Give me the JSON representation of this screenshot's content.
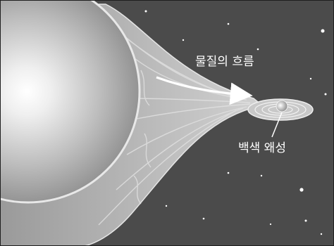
{
  "labels": {
    "flow": "물질의 흐름",
    "white_dwarf": "백색 왜성"
  },
  "colors": {
    "space": "#4a4a4a",
    "frame": "#222222",
    "star_light": "#ffffff",
    "star_dark": "#7a7a7a",
    "stream": "#b9b9b9",
    "disk": "#d8d8d8",
    "star_dot": "#ffffff"
  }
}
